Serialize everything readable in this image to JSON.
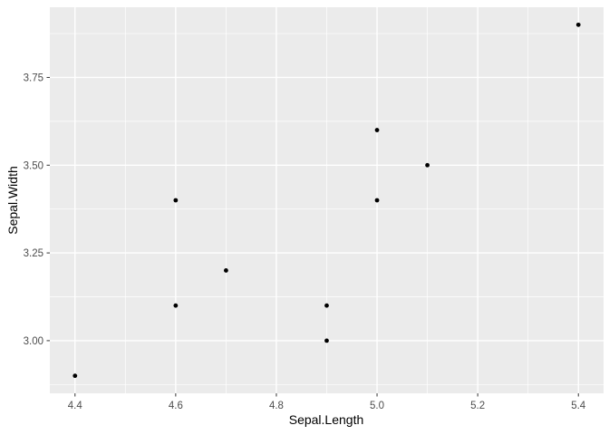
{
  "chart_data": {
    "type": "scatter",
    "title": "",
    "xlabel": "Sepal.Length",
    "ylabel": "Sepal.Width",
    "xlim": [
      4.35,
      5.45
    ],
    "ylim": [
      2.85,
      3.95
    ],
    "x_ticks": [
      4.4,
      4.6,
      4.8,
      5.0,
      5.2,
      5.4
    ],
    "x_tick_labels": [
      "4.4",
      "4.6",
      "4.8",
      "5.0",
      "5.2",
      "5.4"
    ],
    "y_ticks": [
      3.0,
      3.25,
      3.5,
      3.75
    ],
    "y_tick_labels": [
      "3.00",
      "3.25",
      "3.50",
      "3.75"
    ],
    "x_minor_ticks": [
      4.5,
      4.7,
      4.9,
      5.1,
      5.3
    ],
    "y_minor_ticks": [
      2.875,
      3.125,
      3.375,
      3.625,
      3.875
    ],
    "grid": true,
    "legend": false,
    "points": [
      {
        "x": 5.1,
        "y": 3.5
      },
      {
        "x": 4.9,
        "y": 3.0
      },
      {
        "x": 4.7,
        "y": 3.2
      },
      {
        "x": 4.6,
        "y": 3.1
      },
      {
        "x": 5.0,
        "y": 3.6
      },
      {
        "x": 5.4,
        "y": 3.9
      },
      {
        "x": 4.6,
        "y": 3.4
      },
      {
        "x": 5.0,
        "y": 3.4
      },
      {
        "x": 4.4,
        "y": 2.9
      },
      {
        "x": 4.9,
        "y": 3.1
      }
    ],
    "point_radius": 2.4,
    "colors": {
      "outer_background": "#FFFFFF",
      "panel_background": "#EBEBEB",
      "grid_major": "#FFFFFF",
      "grid_minor": "#FFFFFF",
      "point": "#000000",
      "tick_mark": "#333333",
      "tick_label": "#4D4D4D",
      "axis_title": "#000000"
    }
  }
}
